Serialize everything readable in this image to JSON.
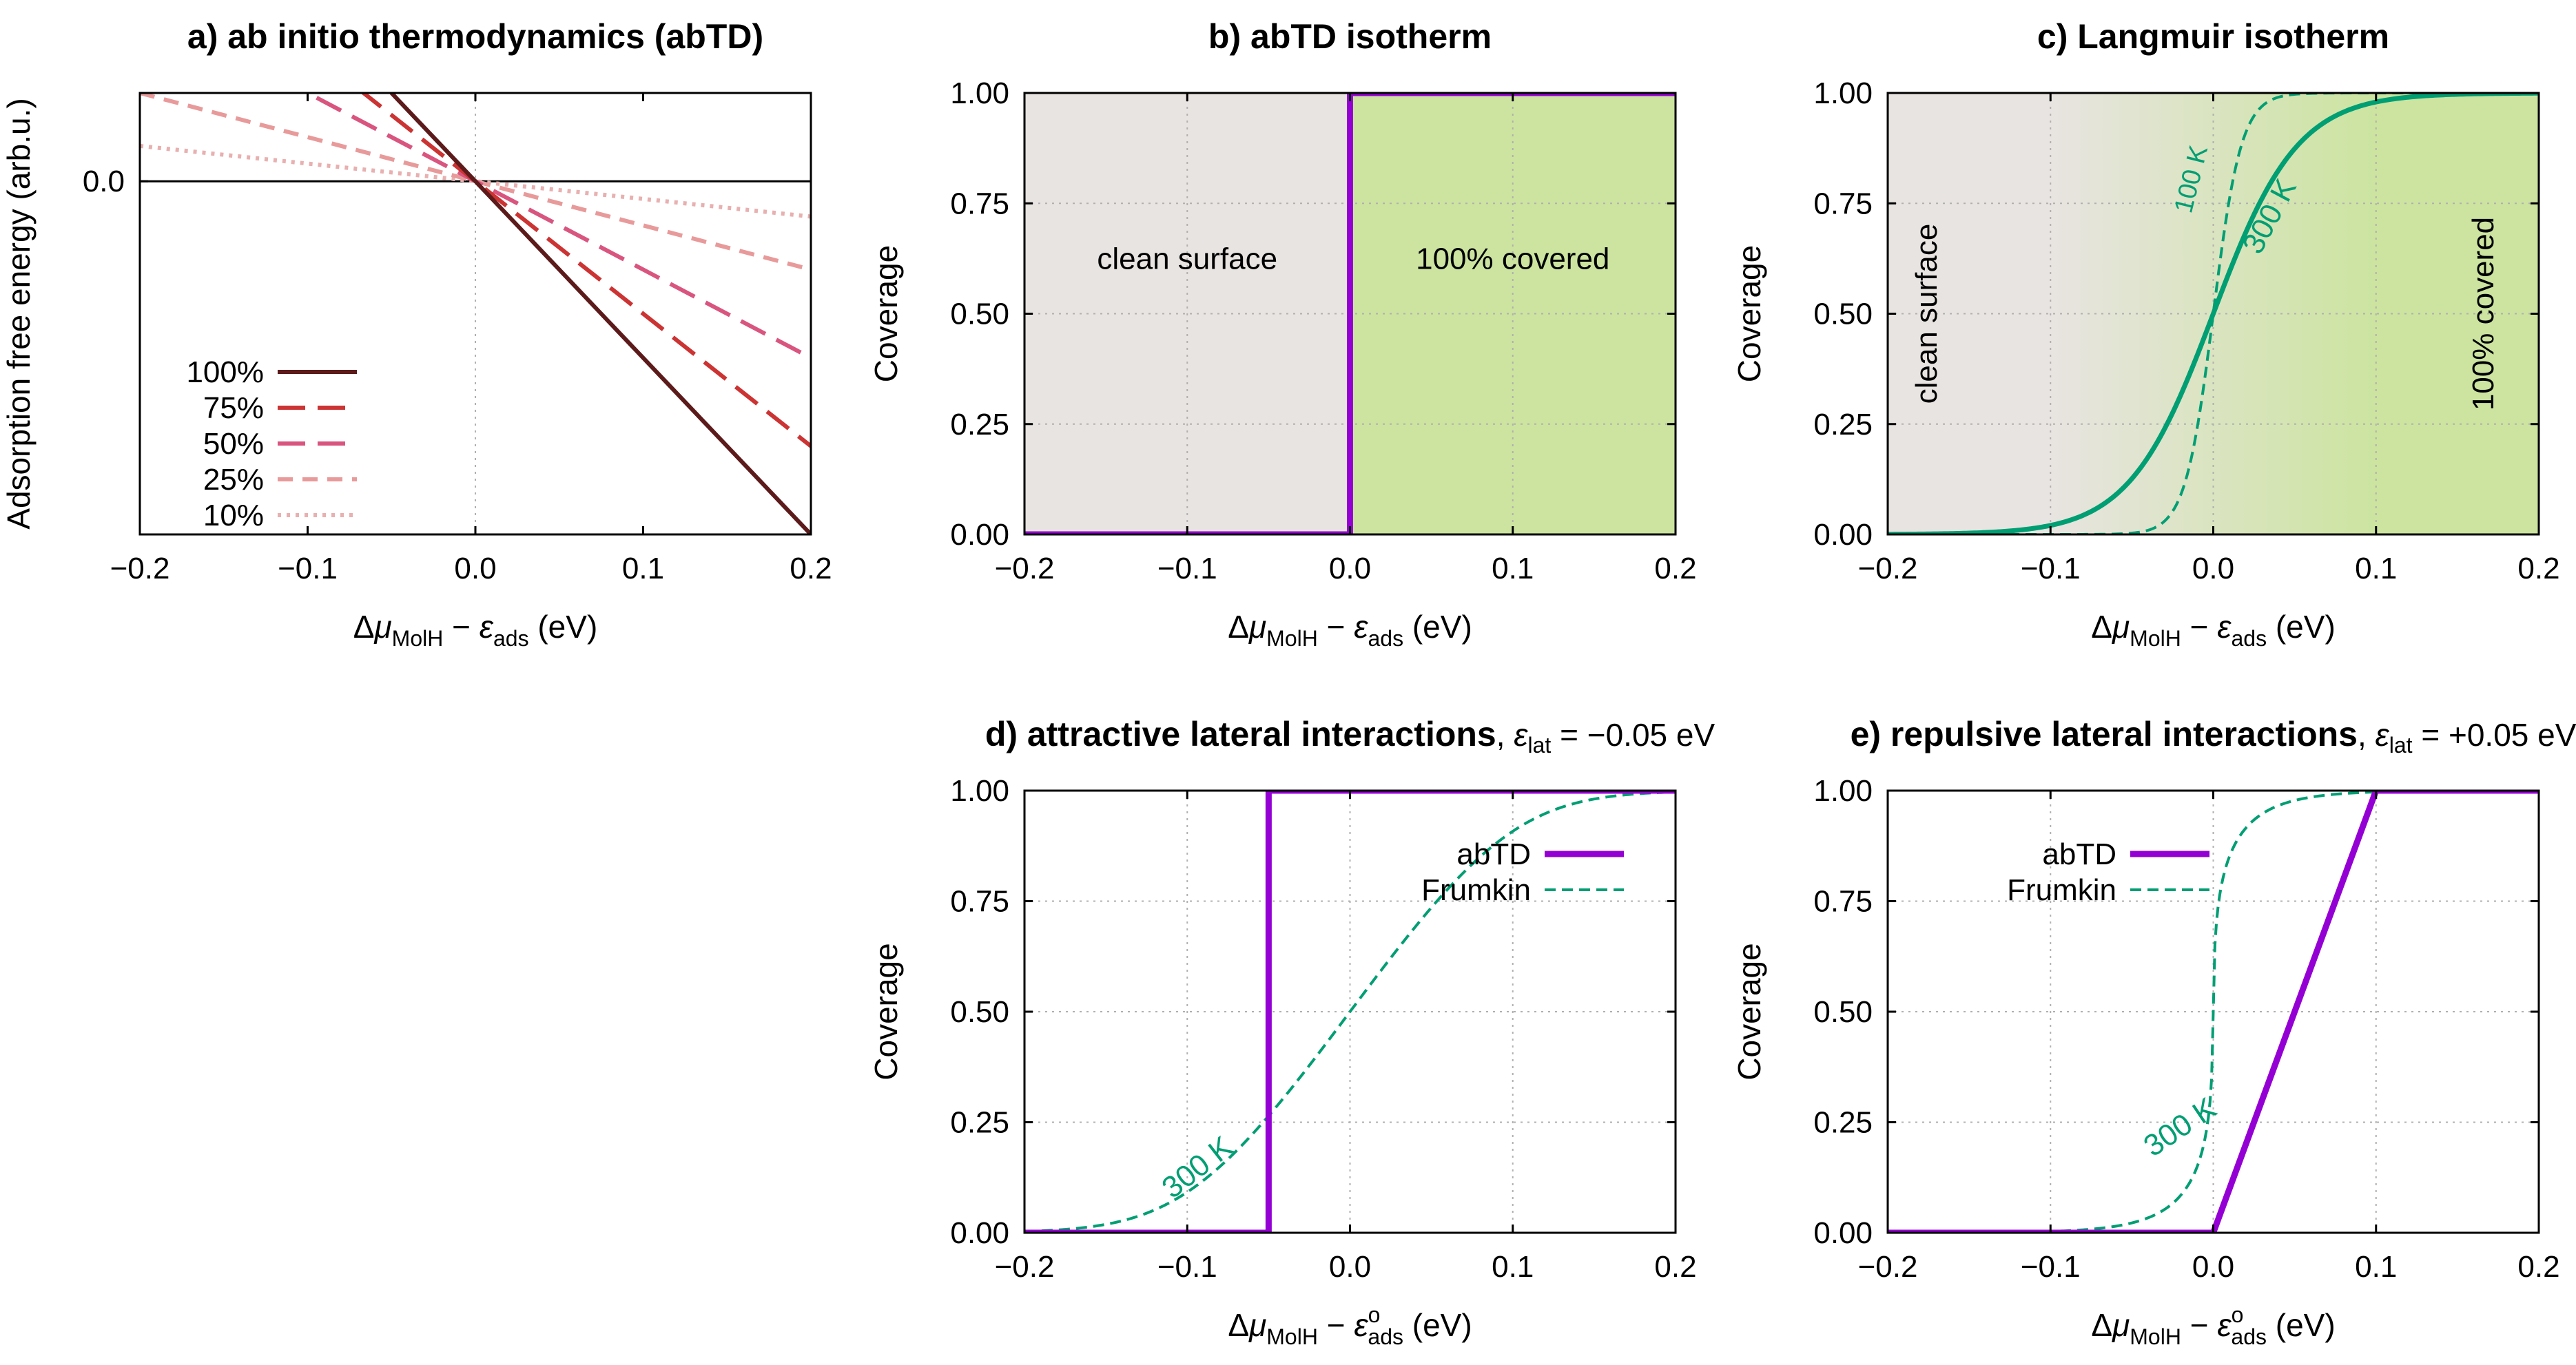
{
  "colors": {
    "abtd": "#9400d3",
    "frumkin": "#009e73",
    "clean": "#e8e4e1",
    "covered": "#cce4a0",
    "c100": "#5c1a1a",
    "c75": "#cc3333",
    "c50": "#d9557f",
    "c25": "#e89a9a",
    "c10": "#e8b0b0"
  },
  "chart_data": [
    {
      "id": "a",
      "type": "line",
      "title": "a) ab initio thermodynamics (abTD)",
      "xlabel": {
        "pre": "Δ",
        "mu": "μ",
        "mu_sub": "MolH",
        "mid": " − ",
        "eps": "ε",
        "eps_sub": "ads",
        "post": " (eV)"
      },
      "ylabel": "Adsorption free energy (arb.u.)",
      "xlim": [
        -0.2,
        0.2
      ],
      "ylim": [
        -1.0,
        0.25
      ],
      "xticks": [
        "−0.2",
        "−0.1",
        "0.0",
        "0.1",
        "0.2"
      ],
      "yticks": [
        "0.0"
      ],
      "series": [
        {
          "name": "100%",
          "slope": -5.0,
          "style": "solid",
          "color_key": "c100"
        },
        {
          "name": "75%",
          "slope": -3.75,
          "style": "longdash",
          "color_key": "c75"
        },
        {
          "name": "50%",
          "slope": -2.5,
          "style": "longdash",
          "color_key": "c50"
        },
        {
          "name": "25%",
          "slope": -1.25,
          "style": "dash",
          "color_key": "c25"
        },
        {
          "name": "10%",
          "slope": -0.5,
          "style": "dot",
          "color_key": "c10"
        }
      ]
    },
    {
      "id": "b",
      "type": "line",
      "title": "b) abTD isotherm",
      "xlabel": {
        "pre": "Δ",
        "mu": "μ",
        "mu_sub": "MolH",
        "mid": " − ",
        "eps": "ε",
        "eps_sub": "ads",
        "post": " (eV)"
      },
      "ylabel": "Coverage",
      "xlim": [
        -0.2,
        0.2
      ],
      "ylim": [
        0,
        1
      ],
      "xticks": [
        "−0.2",
        "−0.1",
        "0.0",
        "0.1",
        "0.2"
      ],
      "yticks": [
        "0.00",
        "0.25",
        "0.50",
        "0.75",
        "1.00"
      ],
      "regions": {
        "clean": "clean surface",
        "covered": "100% covered"
      },
      "series": [
        {
          "name": "abTD",
          "x": [
            -0.2,
            0.0,
            0.0,
            0.2
          ],
          "y": [
            0,
            0,
            1,
            1
          ]
        }
      ]
    },
    {
      "id": "c",
      "type": "line",
      "title": "c) Langmuir isotherm",
      "xlabel": {
        "pre": "Δ",
        "mu": "μ",
        "mu_sub": "MolH",
        "mid": " − ",
        "eps": "ε",
        "eps_sub": "ads",
        "post": " (eV)"
      },
      "ylabel": "Coverage",
      "xlim": [
        -0.2,
        0.2
      ],
      "ylim": [
        0,
        1
      ],
      "xticks": [
        "−0.2",
        "−0.1",
        "0.0",
        "0.1",
        "0.2"
      ],
      "yticks": [
        "0.00",
        "0.25",
        "0.50",
        "0.75",
        "1.00"
      ],
      "regions": {
        "clean": "clean surface",
        "covered": "100% covered"
      },
      "series": [
        {
          "name": "300 K",
          "T": 300,
          "style": "solid"
        },
        {
          "name": "100 K",
          "T": 100,
          "style": "dash"
        }
      ]
    },
    {
      "id": "d",
      "type": "line",
      "title": "d) attractive lateral interactions",
      "title_suffix": {
        "sep": ", ",
        "eps": "ε",
        "sub": "lat",
        "value": " = −0.05 eV"
      },
      "xlabel": {
        "pre": "Δ",
        "mu": "μ",
        "mu_sub": "MolH",
        "mid": " − ",
        "eps": "ε",
        "eps_sup": "o",
        "eps_sub": "ads",
        "post": " (eV)"
      },
      "ylabel": "Coverage",
      "xlim": [
        -0.2,
        0.2
      ],
      "ylim": [
        0,
        1
      ],
      "xticks": [
        "−0.2",
        "−0.1",
        "0.0",
        "0.1",
        "0.2"
      ],
      "yticks": [
        "0.00",
        "0.25",
        "0.50",
        "0.75",
        "1.00"
      ],
      "eps_lat": -0.05,
      "legend": [
        "abTD",
        "Frumkin"
      ],
      "curve_label": "300 K",
      "series": [
        {
          "name": "abTD",
          "x": [
            -0.2,
            -0.05,
            -0.05,
            0.2
          ],
          "y": [
            0,
            0,
            1,
            1
          ]
        },
        {
          "name": "Frumkin",
          "T": 300
        }
      ]
    },
    {
      "id": "e",
      "type": "line",
      "title": "e) repulsive lateral interactions",
      "title_suffix": {
        "sep": ", ",
        "eps": "ε",
        "sub": "lat",
        "value": " = +0.05 eV"
      },
      "xlabel": {
        "pre": "Δ",
        "mu": "μ",
        "mu_sub": "MolH",
        "mid": " − ",
        "eps": "ε",
        "eps_sup": "o",
        "eps_sub": "ads",
        "post": " (eV)"
      },
      "ylabel": "Coverage",
      "xlim": [
        -0.2,
        0.2
      ],
      "ylim": [
        0,
        1
      ],
      "xticks": [
        "−0.2",
        "−0.1",
        "0.0",
        "0.1",
        "0.2"
      ],
      "yticks": [
        "0.00",
        "0.25",
        "0.50",
        "0.75",
        "1.00"
      ],
      "eps_lat": 0.05,
      "legend": [
        "abTD",
        "Frumkin"
      ],
      "curve_label": "300 K",
      "series": [
        {
          "name": "abTD",
          "x": [
            -0.2,
            0.0,
            0.1,
            0.2
          ],
          "y": [
            0,
            0,
            1,
            1
          ]
        },
        {
          "name": "Frumkin",
          "T": 300
        }
      ]
    }
  ]
}
